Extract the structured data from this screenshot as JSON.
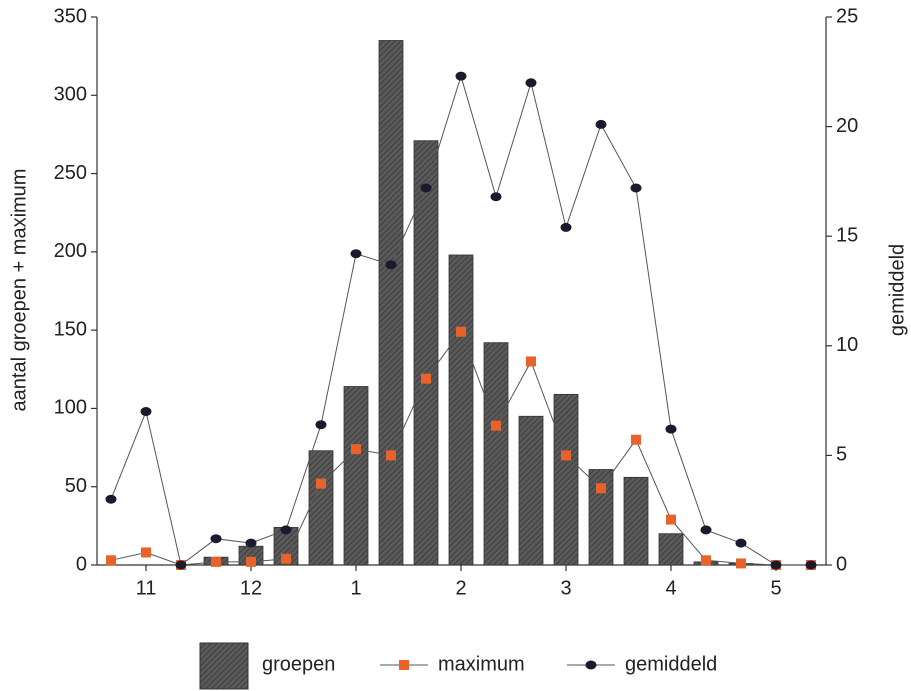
{
  "chart_data": {
    "type": "bar-line",
    "categories": [
      null,
      "11",
      null,
      null,
      "12",
      null,
      null,
      "1",
      null,
      null,
      "2",
      null,
      null,
      "3",
      null,
      null,
      "4",
      null,
      null,
      "5",
      null
    ],
    "series": [
      {
        "name": "groepen",
        "color": "#555555",
        "axis": "y",
        "values": [
          0,
          0,
          0,
          5,
          12,
          24,
          73,
          114,
          335,
          271,
          198,
          142,
          95,
          109,
          61,
          56,
          20,
          2,
          1,
          0,
          0
        ]
      },
      {
        "name": "maximum",
        "color": "#e8622a",
        "axis": "y",
        "values": [
          3,
          8,
          0,
          2,
          2,
          4,
          52,
          74,
          70,
          119,
          149,
          89,
          130,
          70,
          49,
          80,
          29,
          3,
          1,
          0,
          0
        ]
      },
      {
        "name": "gemiddeld",
        "color": "#1a1a2e",
        "axis": "y2",
        "values": [
          3.0,
          7.0,
          0,
          1.2,
          1.0,
          1.6,
          6.4,
          14.2,
          13.7,
          17.2,
          22.3,
          16.8,
          22.0,
          15.4,
          20.1,
          17.2,
          6.2,
          1.6,
          1.0,
          0,
          0
        ]
      }
    ],
    "ylabel": "aantal groepen + maximum",
    "y2label": "gemiddeld",
    "ylim": [
      0,
      350
    ],
    "yticks": [
      0,
      50,
      100,
      150,
      200,
      250,
      300,
      350
    ],
    "y2lim": [
      0,
      25
    ],
    "y2ticks": [
      0,
      5,
      10,
      15,
      20,
      25
    ]
  }
}
